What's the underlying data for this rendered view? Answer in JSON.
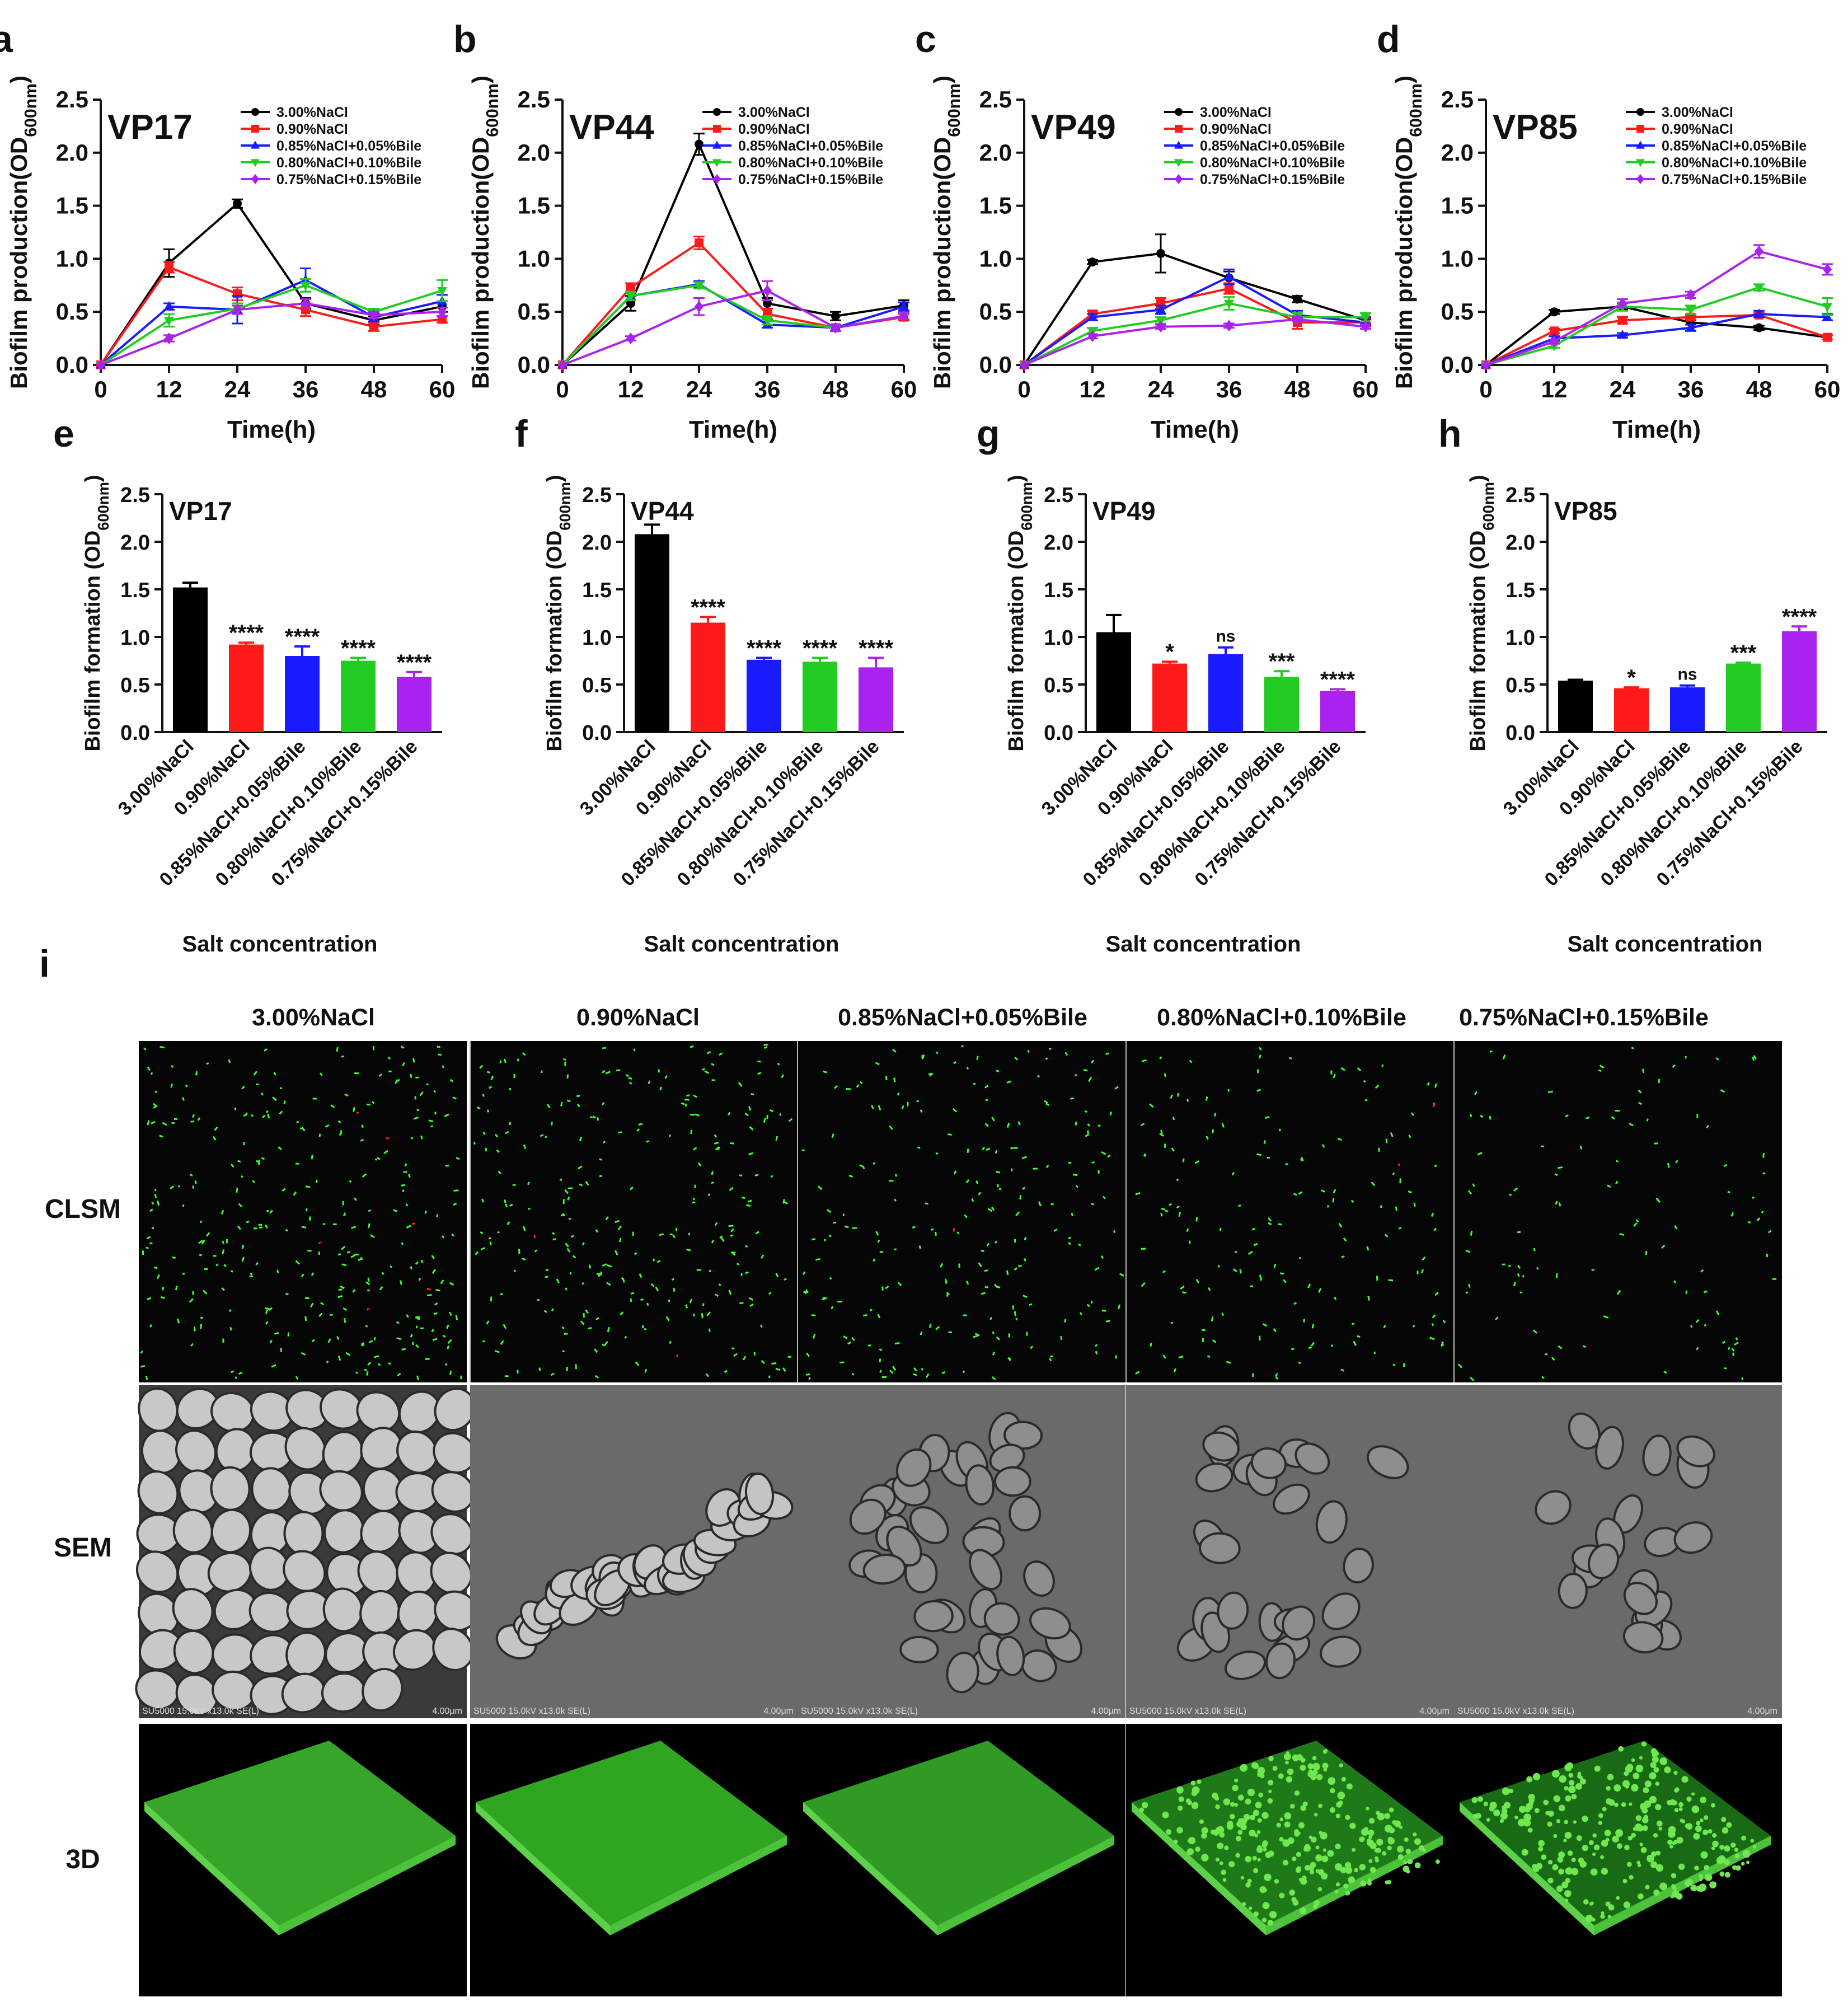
{
  "colors": {
    "black": "#000000",
    "red": "#ff1a1a",
    "blue": "#1a1aff",
    "green": "#22cc22",
    "purple": "#aa22ee",
    "axis": "#111111"
  },
  "panel_letters": [
    "a",
    "b",
    "c",
    "d",
    "e",
    "f",
    "g",
    "h",
    "i"
  ],
  "legend_entries": [
    "3.00%NaCl",
    "0.90%NaCl",
    "0.85%NaCl+0.05%Bile",
    "0.80%NaCl+0.10%Bile",
    "0.75%NaCl+0.15%Bile"
  ],
  "line_ylabel_main": "Biofilm production(OD",
  "line_ylabel_sub": "600nm",
  "line_ylabel_end": ")",
  "line_xlabel": "Time(h)",
  "bar_ylabel_main": "Biofilm formation (OD",
  "bar_ylabel_sub": "600nm",
  "bar_ylabel_end": ")",
  "bar_xlabel": "Salt concentration",
  "micro": {
    "column_headers": [
      "3.00%NaCl",
      "0.90%NaCl",
      "0.85%NaCl+0.05%Bile",
      "0.80%NaCl+0.10%Bile",
      "0.75%NaCl+0.15%Bile"
    ],
    "row_labels": [
      "CLSM",
      "SEM",
      "3D"
    ],
    "sem_caption": "SU5000 15.0kV x13.0k SE(L)",
    "sem_scale": "4.00μm"
  },
  "chart_data": [
    {
      "type": "line",
      "panel": "a",
      "strain": "VP17",
      "x": [
        0,
        12,
        24,
        36,
        48,
        60
      ],
      "xticks": [
        0,
        12,
        24,
        36,
        48,
        60
      ],
      "ylim": [
        0,
        2.5
      ],
      "yticks": [
        "0.0",
        "0.5",
        "1.0",
        "1.5",
        "2.0",
        "2.5"
      ],
      "legend": "top-right",
      "series": [
        {
          "name": "3.00%NaCl",
          "color": "#000000",
          "marker": "circle",
          "values": [
            0,
            0.96,
            1.52,
            0.58,
            0.42,
            0.55
          ],
          "err": [
            0,
            0.13,
            0.04,
            0.05,
            0.04,
            0.05
          ]
        },
        {
          "name": "0.90%NaCl",
          "color": "#ff1a1a",
          "marker": "square",
          "values": [
            0,
            0.92,
            0.67,
            0.52,
            0.36,
            0.43
          ],
          "err": [
            0,
            0.05,
            0.06,
            0.06,
            0.04,
            0.03
          ]
        },
        {
          "name": "0.85%NaCl+0.05%Bile",
          "color": "#1a1aff",
          "marker": "triangle",
          "values": [
            0,
            0.55,
            0.52,
            0.8,
            0.45,
            0.6
          ],
          "err": [
            0,
            0.03,
            0.13,
            0.11,
            0.04,
            0.06
          ]
        },
        {
          "name": "0.80%NaCl+0.10%Bile",
          "color": "#22cc22",
          "marker": "triangle-down",
          "values": [
            0,
            0.42,
            0.53,
            0.75,
            0.5,
            0.7
          ],
          "err": [
            0,
            0.06,
            0.05,
            0.06,
            0.03,
            0.1
          ]
        },
        {
          "name": "0.75%NaCl+0.15%Bile",
          "color": "#aa22ee",
          "marker": "diamond",
          "values": [
            0,
            0.25,
            0.52,
            0.58,
            0.47,
            0.5
          ],
          "err": [
            0,
            0.03,
            0.04,
            0.04,
            0.03,
            0.04
          ]
        }
      ]
    },
    {
      "type": "line",
      "panel": "b",
      "strain": "VP44",
      "x": [
        0,
        12,
        24,
        36,
        48,
        60
      ],
      "xticks": [
        0,
        12,
        24,
        36,
        48,
        60
      ],
      "ylim": [
        0,
        2.5
      ],
      "yticks": [
        "0.0",
        "0.5",
        "1.0",
        "1.5",
        "2.0",
        "2.5"
      ],
      "legend": "top-right",
      "series": [
        {
          "name": "3.00%NaCl",
          "color": "#000000",
          "marker": "circle",
          "values": [
            0,
            0.58,
            2.08,
            0.58,
            0.46,
            0.56
          ],
          "err": [
            0,
            0.07,
            0.1,
            0.05,
            0.04,
            0.05
          ]
        },
        {
          "name": "0.90%NaCl",
          "color": "#ff1a1a",
          "marker": "square",
          "values": [
            0,
            0.73,
            1.15,
            0.48,
            0.35,
            0.45
          ],
          "err": [
            0,
            0.04,
            0.06,
            0.05,
            0.03,
            0.03
          ]
        },
        {
          "name": "0.85%NaCl+0.05%Bile",
          "color": "#1a1aff",
          "marker": "triangle",
          "values": [
            0,
            0.65,
            0.76,
            0.38,
            0.35,
            0.55
          ],
          "err": [
            0,
            0.04,
            0.03,
            0.03,
            0.03,
            0.04
          ]
        },
        {
          "name": "0.80%NaCl+0.10%Bile",
          "color": "#22cc22",
          "marker": "triangle-down",
          "values": [
            0,
            0.65,
            0.75,
            0.42,
            0.35,
            0.46
          ],
          "err": [
            0,
            0.04,
            0.03,
            0.04,
            0.03,
            0.03
          ]
        },
        {
          "name": "0.75%NaCl+0.15%Bile",
          "color": "#aa22ee",
          "marker": "diamond",
          "values": [
            0,
            0.25,
            0.55,
            0.7,
            0.35,
            0.46
          ],
          "err": [
            0,
            0.02,
            0.08,
            0.09,
            0.03,
            0.03
          ]
        }
      ]
    },
    {
      "type": "line",
      "panel": "c",
      "strain": "VP49",
      "x": [
        0,
        12,
        24,
        36,
        48,
        60
      ],
      "xticks": [
        0,
        12,
        24,
        36,
        48,
        60
      ],
      "ylim": [
        0,
        2.5
      ],
      "yticks": [
        "0.0",
        "0.5",
        "1.0",
        "1.5",
        "2.0",
        "2.5"
      ],
      "legend": "top-right",
      "series": [
        {
          "name": "3.00%NaCl",
          "color": "#000000",
          "marker": "circle",
          "values": [
            0,
            0.97,
            1.05,
            0.82,
            0.62,
            0.42
          ],
          "err": [
            0,
            0.02,
            0.18,
            0.06,
            0.03,
            0.03
          ]
        },
        {
          "name": "0.90%NaCl",
          "color": "#ff1a1a",
          "marker": "square",
          "values": [
            0,
            0.48,
            0.58,
            0.72,
            0.4,
            0.4
          ],
          "err": [
            0,
            0.03,
            0.05,
            0.05,
            0.06,
            0.04
          ]
        },
        {
          "name": "0.85%NaCl+0.05%Bile",
          "color": "#1a1aff",
          "marker": "triangle",
          "values": [
            0,
            0.45,
            0.52,
            0.83,
            0.47,
            0.4
          ],
          "err": [
            0,
            0.03,
            0.04,
            0.07,
            0.04,
            0.03
          ]
        },
        {
          "name": "0.80%NaCl+0.10%Bile",
          "color": "#22cc22",
          "marker": "triangle-down",
          "values": [
            0,
            0.32,
            0.42,
            0.58,
            0.45,
            0.45
          ],
          "err": [
            0,
            0.03,
            0.03,
            0.06,
            0.04,
            0.04
          ]
        },
        {
          "name": "0.75%NaCl+0.15%Bile",
          "color": "#aa22ee",
          "marker": "diamond",
          "values": [
            0,
            0.27,
            0.36,
            0.37,
            0.43,
            0.36
          ],
          "err": [
            0,
            0.02,
            0.02,
            0.02,
            0.02,
            0.02
          ]
        }
      ]
    },
    {
      "type": "line",
      "panel": "d",
      "strain": "VP85",
      "x": [
        0,
        12,
        24,
        36,
        48,
        60
      ],
      "xticks": [
        0,
        12,
        24,
        36,
        48,
        60
      ],
      "ylim": [
        0,
        2.5
      ],
      "yticks": [
        "0.0",
        "0.5",
        "1.0",
        "1.5",
        "2.0",
        "2.5"
      ],
      "legend": "top-right",
      "series": [
        {
          "name": "3.00%NaCl",
          "color": "#000000",
          "marker": "circle",
          "values": [
            0,
            0.5,
            0.55,
            0.4,
            0.35,
            0.26
          ],
          "err": [
            0,
            0.02,
            0.03,
            0.02,
            0.02,
            0.02
          ]
        },
        {
          "name": "0.90%NaCl",
          "color": "#ff1a1a",
          "marker": "square",
          "values": [
            0,
            0.32,
            0.42,
            0.45,
            0.47,
            0.26
          ],
          "err": [
            0,
            0.02,
            0.03,
            0.02,
            0.02,
            0.02
          ]
        },
        {
          "name": "0.85%NaCl+0.05%Bile",
          "color": "#1a1aff",
          "marker": "triangle",
          "values": [
            0,
            0.25,
            0.28,
            0.35,
            0.48,
            0.45
          ],
          "err": [
            0,
            0.02,
            0.02,
            0.03,
            0.03,
            0.03
          ]
        },
        {
          "name": "0.80%NaCl+0.10%Bile",
          "color": "#22cc22",
          "marker": "triangle-down",
          "values": [
            0,
            0.18,
            0.55,
            0.52,
            0.73,
            0.55
          ],
          "err": [
            0,
            0.02,
            0.04,
            0.04,
            0.03,
            0.08
          ]
        },
        {
          "name": "0.75%NaCl+0.15%Bile",
          "color": "#aa22ee",
          "marker": "diamond",
          "values": [
            0,
            0.22,
            0.58,
            0.66,
            1.07,
            0.9
          ],
          "err": [
            0,
            0.02,
            0.04,
            0.03,
            0.06,
            0.05
          ]
        }
      ]
    },
    {
      "type": "bar",
      "panel": "e",
      "strain": "VP17",
      "categories": [
        "3.00%NaCl",
        "0.90%NaCl",
        "0.85%NaCl+0.05%Bile",
        "0.80%NaCl+0.10%Bile",
        "0.75%NaCl+0.15%Bile"
      ],
      "values": [
        1.52,
        0.92,
        0.8,
        0.75,
        0.58
      ],
      "err": [
        0.05,
        0.02,
        0.1,
        0.03,
        0.05
      ],
      "significance": [
        "",
        "****",
        "****",
        "****",
        "****"
      ],
      "colors": [
        "#000000",
        "#ff1a1a",
        "#1a1aff",
        "#22cc22",
        "#aa22ee"
      ],
      "ylim": [
        0,
        2.5
      ],
      "yticks": [
        "0.0",
        "0.5",
        "1.0",
        "1.5",
        "2.0",
        "2.5"
      ]
    },
    {
      "type": "bar",
      "panel": "f",
      "strain": "VP44",
      "categories": [
        "3.00%NaCl",
        "0.90%NaCl",
        "0.85%NaCl+0.05%Bile",
        "0.80%NaCl+0.10%Bile",
        "0.75%NaCl+0.15%Bile"
      ],
      "values": [
        2.08,
        1.15,
        0.76,
        0.74,
        0.68
      ],
      "err": [
        0.1,
        0.06,
        0.02,
        0.04,
        0.1
      ],
      "significance": [
        "",
        "****",
        "****",
        "****",
        "****"
      ],
      "colors": [
        "#000000",
        "#ff1a1a",
        "#1a1aff",
        "#22cc22",
        "#aa22ee"
      ],
      "ylim": [
        0,
        2.5
      ],
      "yticks": [
        "0.0",
        "0.5",
        "1.0",
        "1.5",
        "2.0",
        "2.5"
      ]
    },
    {
      "type": "bar",
      "panel": "g",
      "strain": "VP49",
      "categories": [
        "3.00%NaCl",
        "0.90%NaCl",
        "0.85%NaCl+0.05%Bile",
        "0.80%NaCl+0.10%Bile",
        "0.75%NaCl+0.15%Bile"
      ],
      "values": [
        1.05,
        0.72,
        0.82,
        0.58,
        0.43
      ],
      "err": [
        0.18,
        0.02,
        0.07,
        0.06,
        0.02
      ],
      "significance": [
        "",
        "*",
        "ns",
        "***",
        "****"
      ],
      "colors": [
        "#000000",
        "#ff1a1a",
        "#1a1aff",
        "#22cc22",
        "#aa22ee"
      ],
      "ylim": [
        0,
        2.5
      ],
      "yticks": [
        "0.0",
        "0.5",
        "1.0",
        "1.5",
        "2.0",
        "2.5"
      ]
    },
    {
      "type": "bar",
      "panel": "h",
      "strain": "VP85",
      "categories": [
        "3.00%NaCl",
        "0.90%NaCl",
        "0.85%NaCl+0.05%Bile",
        "0.80%NaCl+0.10%Bile",
        "0.75%NaCl+0.15%Bile"
      ],
      "values": [
        0.54,
        0.46,
        0.47,
        0.72,
        1.06
      ],
      "err": [
        0.01,
        0.01,
        0.02,
        0.01,
        0.05
      ],
      "significance": [
        "",
        "*",
        "ns",
        "***",
        "****"
      ],
      "colors": [
        "#000000",
        "#ff1a1a",
        "#1a1aff",
        "#22cc22",
        "#aa22ee"
      ],
      "ylim": [
        0,
        2.5
      ],
      "yticks": [
        "0.0",
        "0.5",
        "1.0",
        "1.5",
        "2.0",
        "2.5"
      ]
    }
  ]
}
